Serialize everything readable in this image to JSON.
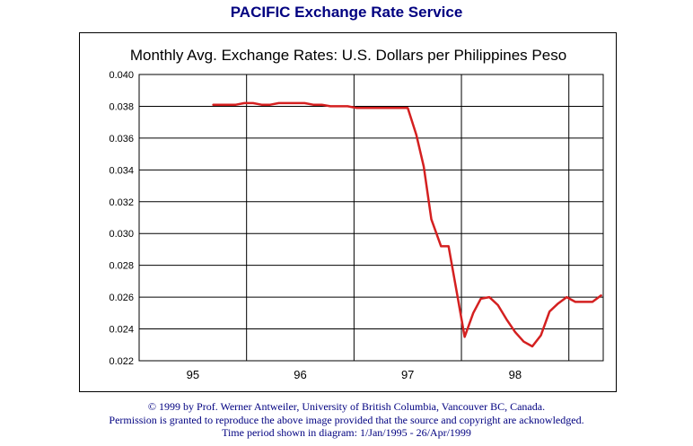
{
  "header": {
    "title": "PACIFIC Exchange Rate Service"
  },
  "chart_data": {
    "type": "line",
    "title": "Monthly Avg. Exchange Rates: U.S. Dollars per Philippines Peso",
    "xlabel": "",
    "ylabel": "",
    "xlim": [
      1995.0,
      1999.32
    ],
    "ylim": [
      0.022,
      0.04
    ],
    "y_ticks": [
      "0.040",
      "0.038",
      "0.036",
      "0.034",
      "0.032",
      "0.030",
      "0.028",
      "0.026",
      "0.024",
      "0.022"
    ],
    "x_ticks": [
      {
        "label": "95",
        "center": 1995.5
      },
      {
        "label": "96",
        "center": 1996.5
      },
      {
        "label": "97",
        "center": 1997.5
      },
      {
        "label": "98",
        "center": 1998.5
      }
    ],
    "x_gridlines": [
      1996,
      1997,
      1998,
      1999
    ],
    "grid": true,
    "line_color": "#d42020",
    "series": [
      {
        "name": "",
        "x": [
          1995.69,
          1995.9,
          1995.98,
          1996.06,
          1996.14,
          1996.22,
          1996.3,
          1996.38,
          1996.46,
          1996.54,
          1996.62,
          1996.7,
          1996.78,
          1996.86,
          1996.94,
          1997.02,
          1997.1,
          1997.18,
          1997.26,
          1997.34,
          1997.42,
          1997.5,
          1997.58,
          1997.65,
          1997.72,
          1997.81,
          1997.88,
          1997.96,
          1998.03,
          1998.11,
          1998.18,
          1998.26,
          1998.34,
          1998.42,
          1998.5,
          1998.58,
          1998.66,
          1998.74,
          1998.82,
          1998.9,
          1998.98,
          1999.06,
          1999.14,
          1999.22,
          1999.3
        ],
        "y": [
          0.0381,
          0.0381,
          0.0382,
          0.0382,
          0.0381,
          0.0381,
          0.0382,
          0.0382,
          0.0382,
          0.0382,
          0.0381,
          0.0381,
          0.038,
          0.038,
          0.038,
          0.0379,
          0.0379,
          0.0379,
          0.0379,
          0.0379,
          0.0379,
          0.0379,
          0.0362,
          0.0342,
          0.0309,
          0.0292,
          0.0292,
          0.0262,
          0.0235,
          0.025,
          0.0259,
          0.026,
          0.0255,
          0.0246,
          0.0238,
          0.0232,
          0.0229,
          0.0236,
          0.0251,
          0.0256,
          0.026,
          0.0257,
          0.0257,
          0.0257,
          0.0261
        ]
      }
    ]
  },
  "footer": {
    "line1": "© 1999 by Prof. Werner Antweiler, University of British Columbia, Vancouver BC, Canada.",
    "line2": "Permission is granted to reproduce the above image provided that the source and copyright are acknowledged.",
    "line3": "Time period shown in diagram: 1/Jan/1995 - 26/Apr/1999"
  }
}
